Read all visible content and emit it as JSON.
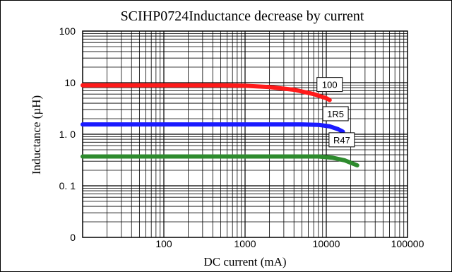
{
  "chart_data": {
    "type": "line",
    "title": "SCIHP0724Inductance decrease by current",
    "xlabel": "DC current (mA)",
    "ylabel": "Inductance (µH)",
    "x_scale": "log",
    "y_scale": "log",
    "xlim": [
      10,
      100000
    ],
    "ylim": [
      0.01,
      100
    ],
    "grid": true,
    "x_ticks": [
      {
        "value": 100,
        "label": "100"
      },
      {
        "value": 1000,
        "label": "1000"
      },
      {
        "value": 10000,
        "label": "10000"
      },
      {
        "value": 100000,
        "label": "100000"
      }
    ],
    "y_ticks": [
      {
        "value": 100,
        "label": "100"
      },
      {
        "value": 10,
        "label": "10"
      },
      {
        "value": 1,
        "label": "1. 0"
      },
      {
        "value": 0.1,
        "label": "0. 1"
      },
      {
        "value": 0.01,
        "label": "0"
      }
    ],
    "series": [
      {
        "name": "100",
        "color": "#ff1a1a",
        "points": [
          [
            10,
            8.9
          ],
          [
            100,
            8.9
          ],
          [
            500,
            8.9
          ],
          [
            1000,
            8.7
          ],
          [
            2000,
            8.2
          ],
          [
            4000,
            7.3
          ],
          [
            7000,
            6.0
          ],
          [
            10000,
            5.0
          ],
          [
            11000,
            4.6
          ]
        ]
      },
      {
        "name": "1R5",
        "color": "#1a1aff",
        "points": [
          [
            10,
            1.55
          ],
          [
            100,
            1.55
          ],
          [
            1000,
            1.55
          ],
          [
            5000,
            1.55
          ],
          [
            8000,
            1.52
          ],
          [
            11000,
            1.42
          ],
          [
            14000,
            1.25
          ],
          [
            16000,
            1.12
          ]
        ]
      },
      {
        "name": "R47",
        "color": "#2e8b2e",
        "points": [
          [
            10,
            0.37
          ],
          [
            100,
            0.37
          ],
          [
            1000,
            0.37
          ],
          [
            8000,
            0.37
          ],
          [
            12000,
            0.35
          ],
          [
            17000,
            0.31
          ],
          [
            20000,
            0.28
          ],
          [
            24000,
            0.25
          ]
        ]
      }
    ],
    "label_tags": [
      {
        "text": "100",
        "x": 11000,
        "y": 9.2
      },
      {
        "text": "1R5",
        "x": 13000,
        "y": 2.5
      },
      {
        "text": "R47",
        "x": 15500,
        "y": 0.78
      }
    ]
  }
}
